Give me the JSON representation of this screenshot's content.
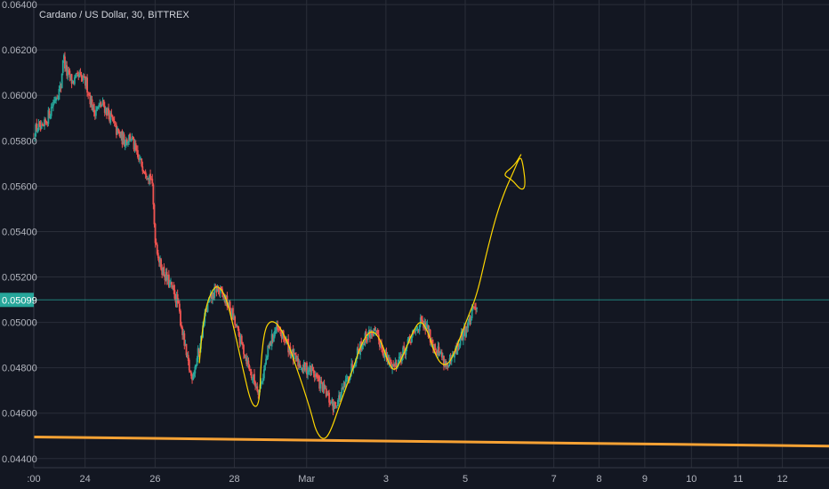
{
  "chart_data": {
    "type": "candlestick",
    "title": "Cardano / US Dollar, 30, BITTREX",
    "ylim": [
      0.0436,
      0.0642
    ],
    "xlim": [
      0,
      17.05
    ],
    "y_ticks": [
      "0.06400",
      "0.06200",
      "0.06000",
      "0.05800",
      "0.05600",
      "0.05400",
      "0.05200",
      "0.05000",
      "0.04800",
      "0.04600",
      "0.04400"
    ],
    "x_ticks": [
      {
        "label": ":00",
        "day": 0.0
      },
      {
        "label": "24",
        "day": 1.1
      },
      {
        "label": "26",
        "day": 2.6
      },
      {
        "label": "28",
        "day": 4.3
      },
      {
        "label": "Mar",
        "day": 5.85
      },
      {
        "label": "3",
        "day": 7.55
      },
      {
        "label": "5",
        "day": 9.25
      },
      {
        "label": "7",
        "day": 11.15
      },
      {
        "label": "8",
        "day": 12.12
      },
      {
        "label": "9",
        "day": 13.1
      },
      {
        "label": "10",
        "day": 14.1
      },
      {
        "label": "11",
        "day": 15.1
      },
      {
        "label": "12",
        "day": 16.05
      }
    ],
    "current_price": {
      "value": 0.05099,
      "label": "0.05099",
      "color": "#26a69a"
    },
    "colors": {
      "up": "#26a69a",
      "down": "#ef5350",
      "trendline": "#f7a234",
      "drawing": "#ffd700",
      "background": "#131722",
      "grid": "#2a2e39"
    },
    "price_path": [
      [
        0.0,
        0.0583
      ],
      [
        0.1,
        0.0586
      ],
      [
        0.2,
        0.0584
      ],
      [
        0.35,
        0.0592
      ],
      [
        0.5,
        0.06
      ],
      [
        0.6,
        0.0603
      ],
      [
        0.65,
        0.0618
      ],
      [
        0.72,
        0.061
      ],
      [
        0.85,
        0.0606
      ],
      [
        1.0,
        0.0608
      ],
      [
        1.15,
        0.0605
      ],
      [
        1.3,
        0.0593
      ],
      [
        1.5,
        0.0596
      ],
      [
        1.65,
        0.0591
      ],
      [
        1.8,
        0.0584
      ],
      [
        1.95,
        0.058
      ],
      [
        2.1,
        0.0582
      ],
      [
        2.25,
        0.0572
      ],
      [
        2.4,
        0.0568
      ],
      [
        2.55,
        0.0563
      ],
      [
        2.62,
        0.0538
      ],
      [
        2.72,
        0.0526
      ],
      [
        2.85,
        0.052
      ],
      [
        3.0,
        0.0514
      ],
      [
        3.1,
        0.0509
      ],
      [
        3.2,
        0.0497
      ],
      [
        3.3,
        0.0484
      ],
      [
        3.4,
        0.0476
      ],
      [
        3.5,
        0.0482
      ],
      [
        3.6,
        0.0492
      ],
      [
        3.7,
        0.0504
      ],
      [
        3.8,
        0.051
      ],
      [
        3.95,
        0.0515
      ],
      [
        4.1,
        0.0511
      ],
      [
        4.25,
        0.0505
      ],
      [
        4.4,
        0.0495
      ],
      [
        4.55,
        0.0486
      ],
      [
        4.7,
        0.0476
      ],
      [
        4.85,
        0.047
      ],
      [
        4.95,
        0.0478
      ],
      [
        5.05,
        0.0488
      ],
      [
        5.2,
        0.0497
      ],
      [
        5.4,
        0.0493
      ],
      [
        5.6,
        0.0484
      ],
      [
        5.8,
        0.048
      ],
      [
        6.0,
        0.0479
      ],
      [
        6.15,
        0.0473
      ],
      [
        6.25,
        0.047
      ],
      [
        6.35,
        0.0466
      ],
      [
        6.45,
        0.0463
      ],
      [
        6.55,
        0.0466
      ],
      [
        6.65,
        0.047
      ],
      [
        6.8,
        0.0478
      ],
      [
        6.95,
        0.0487
      ],
      [
        7.15,
        0.0494
      ],
      [
        7.3,
        0.0496
      ],
      [
        7.45,
        0.0491
      ],
      [
        7.6,
        0.0483
      ],
      [
        7.75,
        0.0481
      ],
      [
        7.95,
        0.0487
      ],
      [
        8.15,
        0.0494
      ],
      [
        8.3,
        0.05
      ],
      [
        8.45,
        0.0497
      ],
      [
        8.6,
        0.049
      ],
      [
        8.75,
        0.0486
      ],
      [
        8.9,
        0.048
      ],
      [
        9.05,
        0.0486
      ],
      [
        9.2,
        0.0494
      ],
      [
        9.35,
        0.05
      ],
      [
        9.5,
        0.0508
      ]
    ],
    "support_line": [
      [
        0.0,
        0.04495
      ],
      [
        17.05,
        0.04455
      ]
    ],
    "hand_drawn_path": [
      [
        3.55,
        0.0482
      ],
      [
        3.6,
        0.0495
      ],
      [
        3.7,
        0.0508
      ],
      [
        3.85,
        0.0515
      ],
      [
        3.95,
        0.0516
      ],
      [
        4.08,
        0.0513
      ],
      [
        4.2,
        0.0505
      ],
      [
        4.35,
        0.0492
      ],
      [
        4.5,
        0.0478
      ],
      [
        4.65,
        0.0465
      ],
      [
        4.78,
        0.0462
      ],
      [
        4.85,
        0.0468
      ],
      [
        4.87,
        0.0483
      ],
      [
        4.95,
        0.0497
      ],
      [
        5.08,
        0.0501
      ],
      [
        5.25,
        0.0499
      ],
      [
        5.45,
        0.0491
      ],
      [
        5.6,
        0.0482
      ],
      [
        5.8,
        0.047
      ],
      [
        5.95,
        0.046
      ],
      [
        6.05,
        0.0452
      ],
      [
        6.2,
        0.0448
      ],
      [
        6.35,
        0.0451
      ],
      [
        6.6,
        0.0466
      ],
      [
        6.85,
        0.048
      ],
      [
        7.05,
        0.0492
      ],
      [
        7.25,
        0.0497
      ],
      [
        7.45,
        0.0492
      ],
      [
        7.6,
        0.0482
      ],
      [
        7.75,
        0.0478
      ],
      [
        7.95,
        0.0487
      ],
      [
        8.15,
        0.0497
      ],
      [
        8.3,
        0.0501
      ],
      [
        8.45,
        0.0496
      ],
      [
        8.6,
        0.0486
      ],
      [
        8.75,
        0.0481
      ],
      [
        8.92,
        0.0482
      ],
      [
        9.1,
        0.0491
      ],
      [
        9.3,
        0.0502
      ],
      [
        9.5,
        0.0512
      ],
      [
        9.7,
        0.053
      ],
      [
        9.9,
        0.0546
      ],
      [
        10.1,
        0.0558
      ],
      [
        10.3,
        0.0567
      ],
      [
        10.42,
        0.0573
      ],
      [
        10.48,
        0.0571
      ],
      [
        10.55,
        0.056
      ],
      [
        10.45,
        0.0558
      ],
      [
        10.25,
        0.0563
      ],
      [
        10.05,
        0.0565
      ],
      [
        10.3,
        0.0569
      ],
      [
        10.45,
        0.0574
      ]
    ]
  }
}
